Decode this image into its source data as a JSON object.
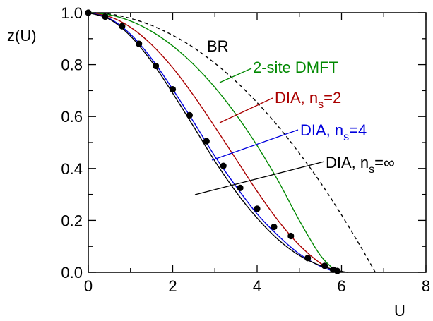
{
  "chart_data": {
    "type": "line",
    "title": "",
    "xlabel": "U",
    "ylabel": "z(U)",
    "xlim": [
      0,
      8
    ],
    "ylim": [
      0,
      1
    ],
    "x_ticks": [
      "0",
      "2",
      "4",
      "6",
      "8"
    ],
    "y_ticks": [
      "0.0",
      "0.2",
      "0.4",
      "0.6",
      "0.8",
      "1.0"
    ],
    "grid": false,
    "legend": "inline labels with leader lines",
    "series": [
      {
        "name": "BR",
        "color": "#000000",
        "style": "dashed",
        "x": [
          0,
          0.5,
          1,
          1.5,
          2,
          2.5,
          3,
          3.5,
          4,
          4.5,
          5,
          5.5,
          6,
          6.5,
          6.8
        ],
        "y": [
          1.0,
          0.995,
          0.978,
          0.951,
          0.913,
          0.865,
          0.805,
          0.735,
          0.654,
          0.562,
          0.459,
          0.346,
          0.221,
          0.086,
          0.0
        ]
      },
      {
        "name": "2-site DMFT",
        "color": "#008800",
        "style": "solid",
        "x": [
          0,
          0.5,
          1,
          1.5,
          2,
          2.5,
          3,
          3.5,
          4,
          4.5,
          5,
          5.5,
          5.9
        ],
        "y": [
          1.0,
          0.992,
          0.968,
          0.928,
          0.872,
          0.8,
          0.712,
          0.608,
          0.488,
          0.352,
          0.2,
          0.065,
          0.0
        ]
      },
      {
        "name": "DIA, n_s=2",
        "color": "#aa0000",
        "style": "solid",
        "x": [
          0,
          0.5,
          1,
          1.5,
          2,
          2.5,
          3,
          3.5,
          4,
          4.5,
          5,
          5.5,
          5.9
        ],
        "y": [
          1.0,
          0.985,
          0.944,
          0.877,
          0.788,
          0.68,
          0.56,
          0.436,
          0.312,
          0.199,
          0.105,
          0.035,
          0.0
        ]
      },
      {
        "name": "DIA, n_s=4",
        "color": "#0000dd",
        "style": "solid",
        "x": [
          0,
          0.5,
          1,
          1.5,
          2,
          2.5,
          3,
          3.5,
          4,
          4.5,
          5,
          5.5,
          5.9
        ],
        "y": [
          1.0,
          0.978,
          0.917,
          0.823,
          0.705,
          0.578,
          0.447,
          0.331,
          0.225,
          0.141,
          0.071,
          0.023,
          0.0
        ]
      },
      {
        "name": "DIA, n_s=∞",
        "color": "#000000",
        "style": "solid",
        "x": [
          0,
          0.5,
          1,
          1.5,
          2,
          2.5,
          3,
          3.5,
          4,
          4.5,
          5,
          5.5,
          6,
          6.15
        ],
        "y": [
          1.0,
          0.975,
          0.91,
          0.812,
          0.69,
          0.56,
          0.428,
          0.31,
          0.209,
          0.126,
          0.065,
          0.026,
          0.004,
          0.0
        ]
      },
      {
        "name": "points",
        "color": "#000000",
        "style": "markers",
        "x": [
          0,
          0.4,
          0.8,
          1.2,
          1.6,
          2.0,
          2.4,
          2.8,
          3.2,
          3.6,
          4.0,
          4.4,
          4.8,
          5.2,
          5.6,
          5.8,
          5.9
        ],
        "y": [
          1.0,
          0.985,
          0.948,
          0.88,
          0.795,
          0.705,
          0.605,
          0.505,
          0.41,
          0.325,
          0.245,
          0.175,
          0.14,
          0.055,
          0.025,
          0.01,
          0.005
        ]
      }
    ],
    "labels": {
      "br": "BR",
      "dmft": "2-site DMFT",
      "dia_prefix": "DIA, n",
      "dia_sub": "s",
      "dia2_tail": "=2",
      "dia4_tail": "=4",
      "diainf_tail": "=∞"
    }
  }
}
